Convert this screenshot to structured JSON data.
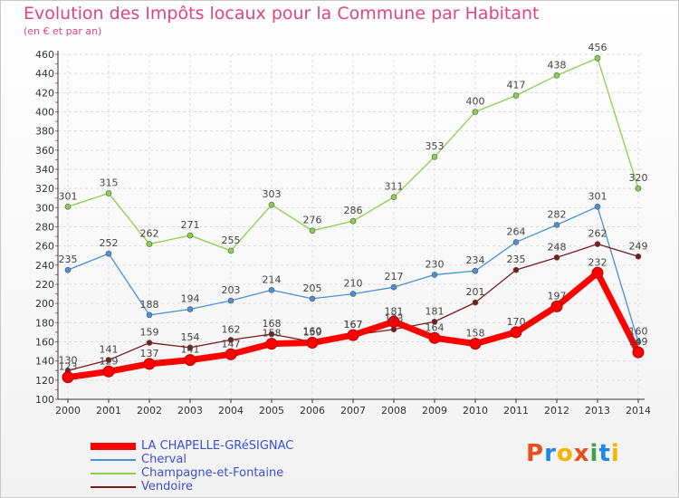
{
  "header": {
    "title": "Evolution des Impôts locaux pour la Commune par Habitant",
    "subtitle": "(en € et par an)"
  },
  "logo": {
    "text": "Proxiti",
    "colors": [
      "#e94d1b",
      "#1e88e5",
      "#f5b400",
      "#e94d1b",
      "#43a047",
      "#1e88e5",
      "#f5b400"
    ]
  },
  "colors": {
    "title": "#e0457b",
    "legend_text": "#3b4fd6",
    "grid": "#dcdcdc",
    "axis": "#333333"
  },
  "chart_data": {
    "type": "line",
    "title": "Evolution des Impôts locaux pour la Commune par Habitant",
    "subtitle": "(en € et par an)",
    "xlabel": "",
    "ylabel": "",
    "x": [
      2000,
      2001,
      2002,
      2003,
      2004,
      2005,
      2006,
      2007,
      2008,
      2009,
      2010,
      2011,
      2012,
      2013,
      2014
    ],
    "ylim": [
      100,
      460
    ],
    "y_ticks": [
      100,
      120,
      140,
      160,
      180,
      200,
      220,
      240,
      260,
      280,
      300,
      320,
      340,
      360,
      380,
      400,
      420,
      440,
      460
    ],
    "grid": true,
    "legend_position": "bottom-left",
    "series": [
      {
        "name": "Champagne-et-Fontaine",
        "color": "#8ccf4d",
        "values": [
          301,
          315,
          262,
          271,
          255,
          303,
          276,
          286,
          311,
          353,
          400,
          417,
          438,
          456,
          320
        ],
        "labels": [
          "301",
          "315",
          "262",
          "271",
          "255",
          "303",
          "276",
          "286",
          "311",
          "353",
          "400",
          "417",
          "438",
          "456",
          "320"
        ]
      },
      {
        "name": "Cherval",
        "color": "#4b8fd6",
        "values": [
          235,
          252,
          188,
          194,
          203,
          214,
          205,
          210,
          217,
          230,
          234,
          264,
          282,
          301,
          160
        ],
        "labels": [
          "235",
          "252",
          "188",
          "194",
          "203",
          "214",
          "205",
          "210",
          "217",
          "230",
          "234",
          "264",
          "282",
          "301",
          "160"
        ]
      },
      {
        "name": "Vendoire",
        "color": "#7a1c1c",
        "values": [
          130,
          141,
          159,
          154,
          162,
          168,
          160,
          167,
          173,
          181,
          201,
          235,
          248,
          262,
          249
        ],
        "labels": [
          "130",
          "141",
          "159",
          "154",
          "162",
          "168",
          "160",
          "167",
          "173",
          "181",
          "201",
          "235",
          "248",
          "262",
          "249"
        ]
      },
      {
        "name": "LA CHAPELLE-GRéSIGNAC",
        "color": "#ff0000",
        "values": [
          123,
          129,
          137,
          141,
          147,
          158,
          159,
          167,
          181,
          164,
          158,
          170,
          197,
          232,
          149
        ],
        "labels": [
          "123",
          "129",
          "137",
          "141",
          "147",
          "158",
          "159",
          "167",
          "181",
          "164",
          "158",
          "170",
          "197",
          "232",
          "149"
        ]
      }
    ]
  },
  "legend": {
    "items": [
      {
        "label": "LA CHAPELLE-GRéSIGNAC",
        "color": "#ff0000"
      },
      {
        "label": "Cherval",
        "color": "#4b8fd6"
      },
      {
        "label": "Champagne-et-Fontaine",
        "color": "#8ccf4d"
      },
      {
        "label": "Vendoire",
        "color": "#7a1c1c"
      }
    ]
  }
}
